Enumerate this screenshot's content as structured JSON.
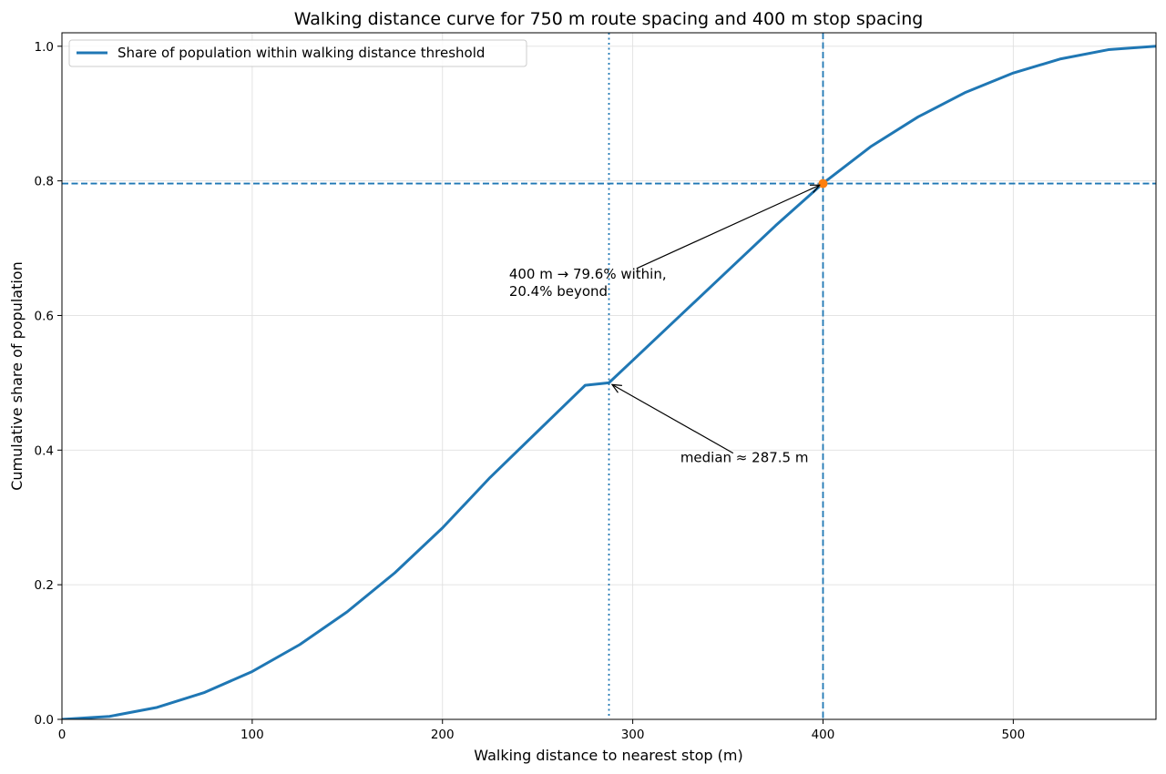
{
  "chart_data": {
    "type": "line",
    "title": "Walking distance curve for 750 m route spacing and 400 m stop spacing",
    "xlabel": "Walking distance to nearest stop (m)",
    "ylabel": "Cumulative share of population",
    "xlim": [
      0,
      575
    ],
    "ylim": [
      0,
      1.02
    ],
    "xticks": [
      0,
      100,
      200,
      300,
      400,
      500
    ],
    "xtick_labels": [
      "0",
      "100",
      "200",
      "300",
      "400",
      "500"
    ],
    "yticks": [
      0.0,
      0.2,
      0.4,
      0.6,
      0.8,
      1.0
    ],
    "ytick_labels": [
      "0.0",
      "0.2",
      "0.4",
      "0.6",
      "0.8",
      "1.0"
    ],
    "grid": true,
    "legend_position": "top-left",
    "series": [
      {
        "name": "Share of population within walking distance threshold",
        "color": "#1f77b4",
        "x": [
          0,
          25,
          50,
          75,
          100,
          125,
          150,
          175,
          200,
          225,
          250,
          275,
          287.5,
          300,
          325,
          350,
          375,
          400,
          425,
          450,
          475,
          500,
          525,
          550,
          575
        ],
        "y": [
          0.0,
          0.0044,
          0.0178,
          0.04,
          0.0711,
          0.1111,
          0.16,
          0.2178,
          0.2844,
          0.3593,
          0.4278,
          0.4963,
          0.5,
          0.5333,
          0.6,
          0.6667,
          0.7333,
          0.7964,
          0.8507,
          0.8951,
          0.9316,
          0.9603,
          0.9813,
          0.9949,
          1.0
        ]
      }
    ],
    "reference_lines": {
      "threshold_x": 400,
      "threshold_y": 0.796,
      "median_x": 287.5,
      "line_color": "#1f77b4"
    },
    "highlight_point": {
      "x": 400,
      "y": 0.796,
      "color": "#ff7f0e"
    },
    "annotations": [
      {
        "id": "threshold",
        "lines": [
          "400 m → 79.6% within,",
          "20.4% beyond"
        ],
        "arrow_to": [
          400,
          0.796
        ],
        "text_at": [
          235,
          0.655
        ]
      },
      {
        "id": "median",
        "lines": [
          "median ≈ 287.5 m"
        ],
        "arrow_to": [
          287.5,
          0.5
        ],
        "text_at": [
          325,
          0.382
        ]
      }
    ]
  }
}
